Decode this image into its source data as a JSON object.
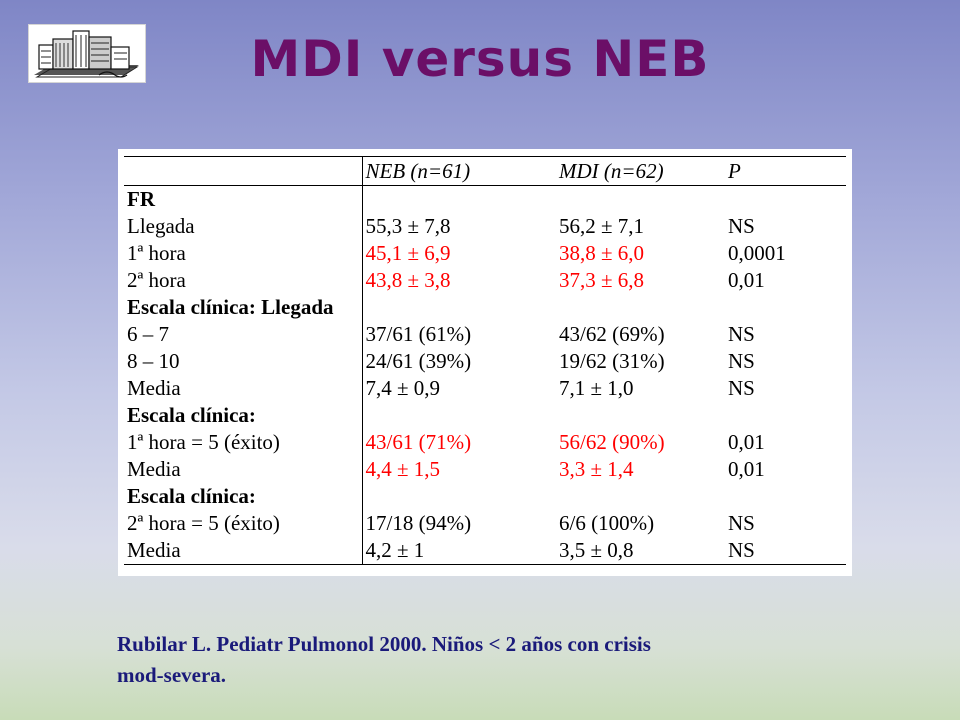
{
  "slide": {
    "title": "MDI versus NEB",
    "logo_icon": "hospital-building-icon"
  },
  "table": {
    "headers": [
      "",
      "NEB (n=61)",
      "MDI (n=62)",
      "P"
    ],
    "rows": [
      {
        "label": "FR",
        "neb": "",
        "mdi": "",
        "p": "",
        "label_bold": true,
        "red": false
      },
      {
        "label": "Llegada",
        "neb": "55,3 ± 7,8",
        "mdi": "56,2 ± 7,1",
        "p": "NS",
        "label_bold": false,
        "red": false
      },
      {
        "label": "1ª hora",
        "neb": "45,1 ± 6,9",
        "mdi": "38,8 ± 6,0",
        "p": "0,0001",
        "label_bold": false,
        "red": true
      },
      {
        "label": "2ª hora",
        "neb": "43,8 ± 3,8",
        "mdi": "37,3 ± 6,8",
        "p": "0,01",
        "label_bold": false,
        "red": true
      },
      {
        "label": "Escala clínica: Llegada",
        "neb": "",
        "mdi": "",
        "p": "",
        "label_bold": true,
        "red": false
      },
      {
        "label": "6 – 7",
        "neb": "37/61 (61%)",
        "mdi": "43/62 (69%)",
        "p": "NS",
        "label_bold": false,
        "red": false
      },
      {
        "label": "8 – 10",
        "neb": "24/61 (39%)",
        "mdi": "19/62 (31%)",
        "p": "NS",
        "label_bold": false,
        "red": false
      },
      {
        "label": "Media",
        "neb": "7,4 ± 0,9",
        "mdi": "7,1 ± 1,0",
        "p": "NS",
        "label_bold": false,
        "red": false
      },
      {
        "label": "Escala clínica:",
        "neb": "",
        "mdi": "",
        "p": "",
        "label_bold": true,
        "red": false
      },
      {
        "label": "1ª hora = 5 (éxito)",
        "neb": "43/61 (71%)",
        "mdi": "56/62 (90%)",
        "p": "0,01",
        "label_bold": false,
        "red": true
      },
      {
        "label": "Media",
        "neb": "4,4 ± 1,5",
        "mdi": "3,3 ± 1,4",
        "p": "0,01",
        "label_bold": false,
        "red": true
      },
      {
        "label": "Escala clínica:",
        "neb": "",
        "mdi": "",
        "p": "",
        "label_bold": true,
        "red": false
      },
      {
        "label": "2ª hora = 5 (éxito)",
        "neb": "17/18 (94%)",
        "mdi": "6/6 (100%)",
        "p": "NS",
        "label_bold": false,
        "red": false
      },
      {
        "label": "Media",
        "neb": "4,2 ± 1",
        "mdi": "3,5 ± 0,8",
        "p": "NS",
        "label_bold": false,
        "red": false
      }
    ]
  },
  "caption": {
    "line1": "Rubilar L. Pediatr Pulmonol 2000. Niños < 2 años con crisis",
    "line2": "mod-severa."
  },
  "colors": {
    "title": "#6b0f67",
    "highlight": "#ff0000",
    "caption": "#1a1a7a"
  }
}
